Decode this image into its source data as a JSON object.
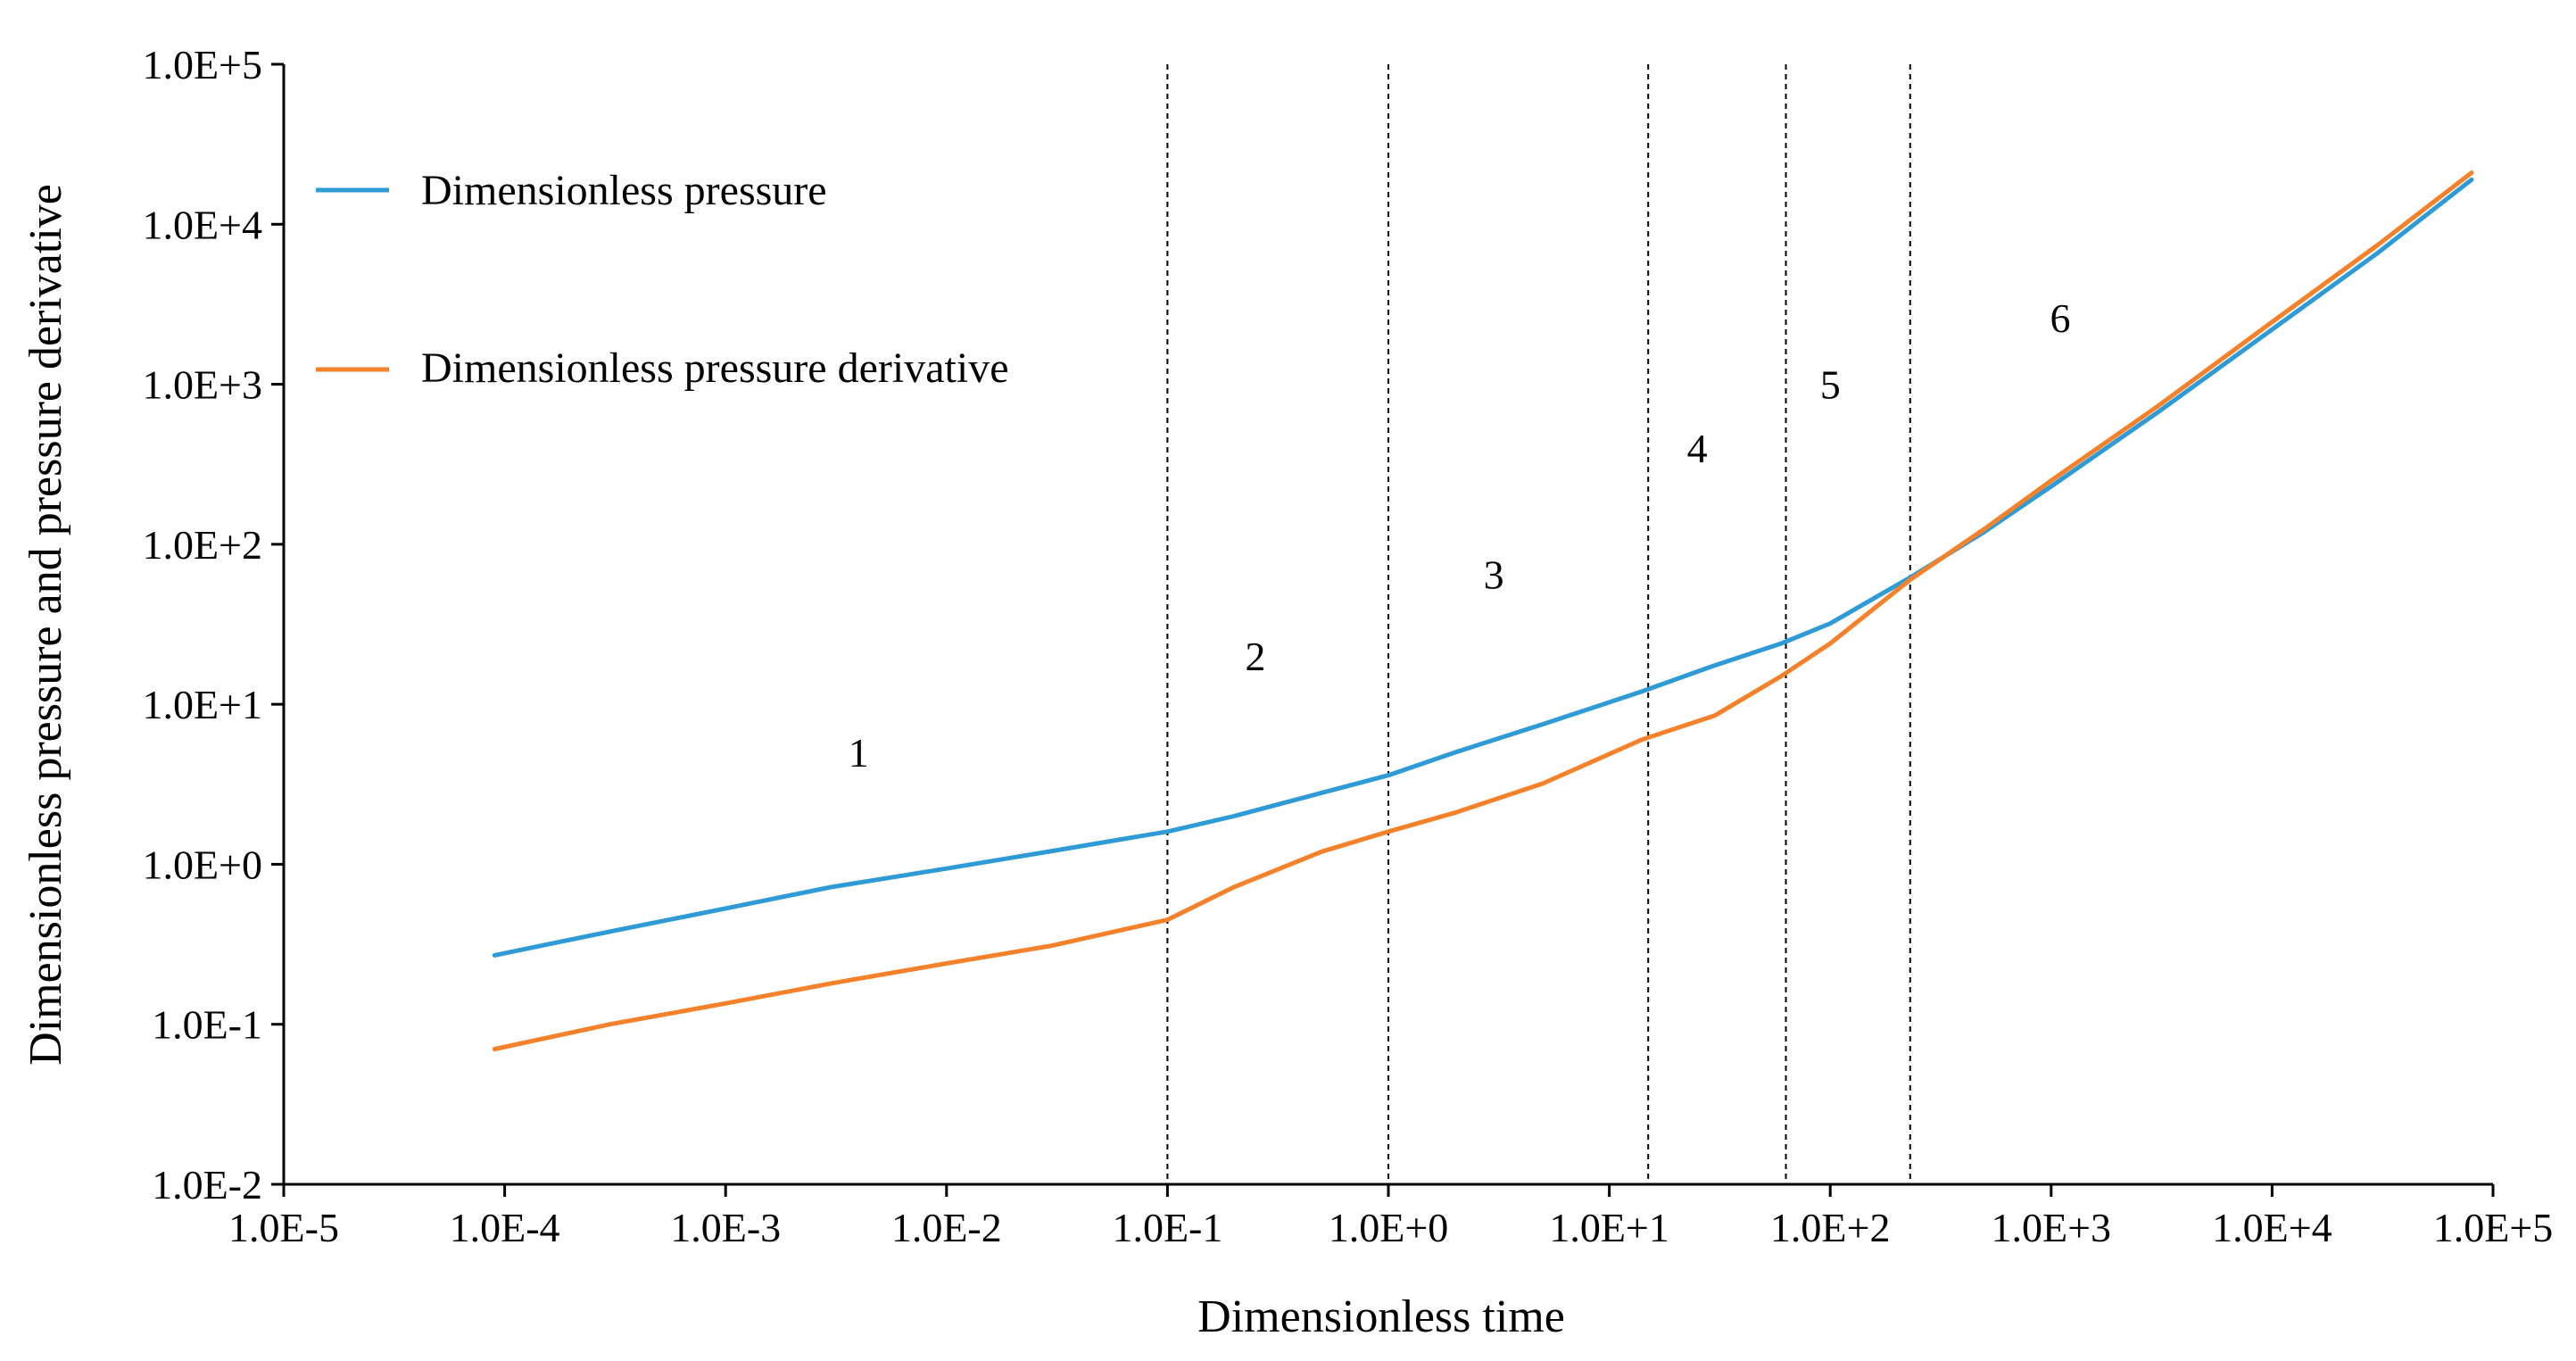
{
  "chart_data": {
    "type": "line",
    "title": "",
    "xlabel": "Dimensionless time",
    "ylabel": "Dimensionless pressure and pressure derivative",
    "x_scale": "log",
    "y_scale": "log",
    "xlim": [
      1e-05,
      100000
    ],
    "ylim": [
      0.01,
      100000
    ],
    "x_ticks": [
      {
        "value": 1e-05,
        "label": "1.0E-5"
      },
      {
        "value": 0.0001,
        "label": "1.0E-4"
      },
      {
        "value": 0.001,
        "label": "1.0E-3"
      },
      {
        "value": 0.01,
        "label": "1.0E-2"
      },
      {
        "value": 0.1,
        "label": "1.0E-1"
      },
      {
        "value": 1,
        "label": "1.0E+0"
      },
      {
        "value": 10,
        "label": "1.0E+1"
      },
      {
        "value": 100,
        "label": "1.0E+2"
      },
      {
        "value": 1000,
        "label": "1.0E+3"
      },
      {
        "value": 10000,
        "label": "1.0E+4"
      },
      {
        "value": 100000,
        "label": "1.0E+5"
      }
    ],
    "y_ticks": [
      {
        "value": 0.01,
        "label": "1.0E-2"
      },
      {
        "value": 0.1,
        "label": "1.0E-1"
      },
      {
        "value": 1,
        "label": "1.0E+0"
      },
      {
        "value": 10,
        "label": "1.0E+1"
      },
      {
        "value": 100,
        "label": "1.0E+2"
      },
      {
        "value": 1000,
        "label": "1.0E+3"
      },
      {
        "value": 10000,
        "label": "1.0E+4"
      },
      {
        "value": 100000,
        "label": "1.0E+5"
      }
    ],
    "legend_position": "top-left",
    "grid": false,
    "series": [
      {
        "name": "Dimensionless pressure",
        "color": "#2e9bd6",
        "x": [
          9e-05,
          0.0003,
          0.001,
          0.003,
          0.01,
          0.03,
          0.1,
          0.2,
          0.5,
          1,
          2,
          5,
          14,
          30,
          60,
          100,
          230,
          500,
          1000,
          3000,
          10000,
          30000,
          80000
        ],
        "y": [
          0.27,
          0.38,
          0.53,
          0.72,
          0.94,
          1.21,
          1.6,
          2.0,
          2.8,
          3.6,
          5.0,
          7.5,
          12,
          17.5,
          24,
          32,
          62,
          120,
          230,
          660,
          2200,
          6600,
          19000
        ]
      },
      {
        "name": "Dimensionless pressure derivative",
        "color": "#f5822a",
        "x": [
          9e-05,
          0.0003,
          0.001,
          0.003,
          0.01,
          0.03,
          0.1,
          0.2,
          0.5,
          1,
          2,
          5,
          14,
          30,
          60,
          100,
          230,
          500,
          1000,
          3000,
          10000,
          30000,
          80000
        ],
        "y": [
          0.07,
          0.1,
          0.135,
          0.18,
          0.24,
          0.31,
          0.45,
          0.72,
          1.2,
          1.6,
          2.1,
          3.2,
          6,
          8.5,
          15,
          24,
          60,
          125,
          250,
          720,
          2450,
          7400,
          21000
        ]
      }
    ],
    "region_dividers_x": [
      0.1,
      1,
      15,
      63,
      230
    ],
    "regions": [
      {
        "label": "1",
        "x": 0.004,
        "y": 5
      },
      {
        "label": "2",
        "x": 0.25,
        "y": 20
      },
      {
        "label": "3",
        "x": 3,
        "y": 65
      },
      {
        "label": "4",
        "x": 25,
        "y": 400
      },
      {
        "label": "5",
        "x": 100,
        "y": 1000
      },
      {
        "label": "6",
        "x": 1100,
        "y": 2600
      }
    ]
  }
}
